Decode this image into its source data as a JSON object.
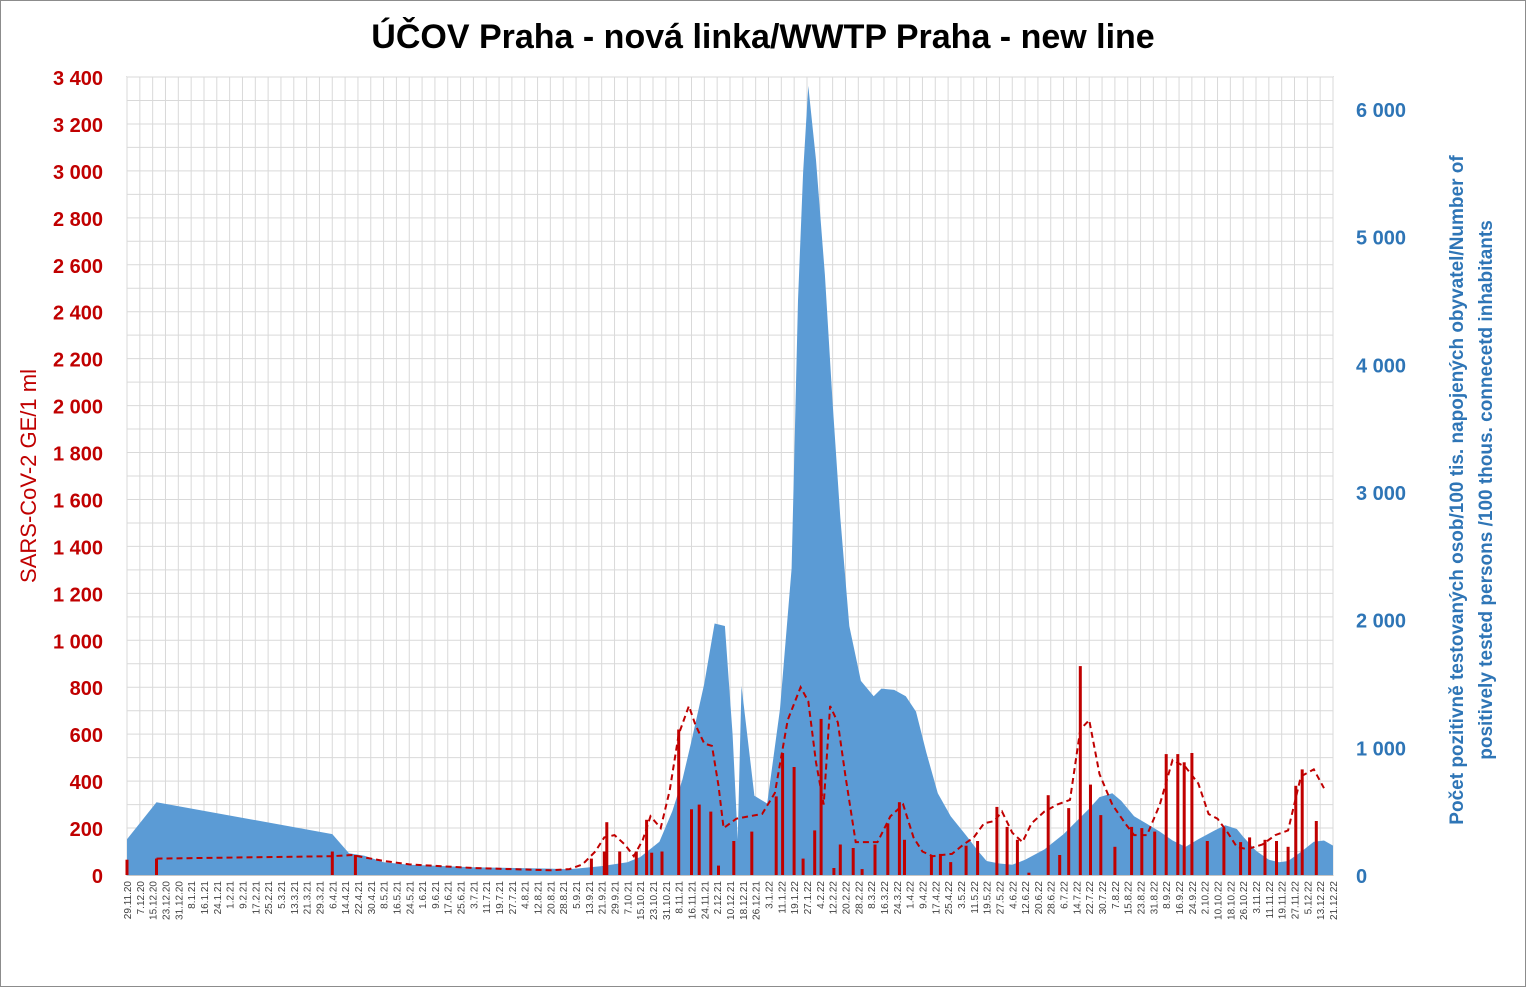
{
  "chart_data": {
    "type": "area",
    "title": "ÚČOV Praha - nová linka/WWTP Praha - new line",
    "ylabel_left": "SARS-CoV-2 GE/1 ml",
    "ylabel_right_lines": [
      "Počet pozitivně testovaných osob/100 tis. napojených obyvatel/Number of",
      "positively tested persons /100 thous. connecetd inhabitants"
    ],
    "y_left_range": [
      0,
      3400
    ],
    "y_left_ticks": [
      0,
      200,
      400,
      600,
      800,
      1000,
      1200,
      1400,
      1600,
      1800,
      2000,
      2200,
      2400,
      2600,
      2800,
      3000,
      3200,
      3400
    ],
    "y_left_tick_labels": [
      "0",
      "200",
      "400",
      "600",
      "800",
      "1 000",
      "1 200",
      "1 400",
      "1 600",
      "1 800",
      "2 000",
      "2 200",
      "2 400",
      "2 600",
      "2 800",
      "3 000",
      "3 200",
      "3 400"
    ],
    "y_right_range": [
      0,
      6250
    ],
    "y_right_ticks": [
      0,
      1000,
      2000,
      3000,
      4000,
      5000,
      6000
    ],
    "y_right_tick_labels": [
      "0",
      "1 000",
      "2 000",
      "3 000",
      "4 000",
      "5 000",
      "6 000"
    ],
    "x_labels": [
      "29.11.20",
      "7.12.20",
      "15.12.20",
      "23.12.20",
      "31.12.20",
      "8.1.21",
      "16.1.21",
      "24.1.21",
      "1.2.21",
      "9.2.21",
      "17.2.21",
      "25.2.21",
      "5.3.21",
      "13.3.21",
      "21.3.21",
      "29.3.21",
      "6.4.21",
      "14.4.21",
      "22.4.21",
      "30.4.21",
      "8.5.21",
      "16.5.21",
      "24.5.21",
      "1.6.21",
      "9.6.21",
      "17.6.21",
      "25.6.21",
      "3.7.21",
      "11.7.21",
      "19.7.21",
      "27.7.21",
      "4.8.21",
      "12.8.21",
      "20.8.21",
      "28.8.21",
      "5.9.21",
      "13.9.21",
      "21.9.21",
      "29.9.21",
      "7.10.21",
      "15.10.21",
      "23.10.21",
      "31.10.21",
      "8.11.21",
      "16.11.21",
      "24.11.21",
      "2.12.21",
      "10.12.21",
      "18.12.21",
      "26.12.21",
      "3.1.22",
      "11.1.22",
      "19.1.22",
      "27.1.22",
      "4.2.22",
      "12.2.22",
      "20.2.22",
      "28.2.22",
      "8.3.22",
      "16.3.22",
      "24.3.22",
      "1.4.22",
      "9.4.22",
      "17.4.22",
      "25.4.22",
      "3.5.22",
      "11.5.22",
      "19.5.22",
      "27.5.22",
      "4.6.22",
      "12.6.22",
      "20.6.22",
      "28.6.22",
      "6.7.22",
      "14.7.22",
      "22.7.22",
      "30.7.22",
      "7.8.22",
      "15.8.22",
      "23.8.22",
      "31.8.22",
      "8.9.22",
      "16.9.22",
      "24.9.22",
      "2.10.22",
      "10.10.22",
      "18.10.22",
      "26.10.22",
      "3.11.22",
      "11.11.22",
      "19.11.22",
      "27.11.22",
      "5.12.22",
      "13.12.22",
      "21.12.22"
    ],
    "x_range": [
      0,
      94
    ],
    "series": [
      {
        "kind": "area",
        "axis": "right",
        "color": "#5b9bd5",
        "points": [
          [
            0,
            280
          ],
          [
            2.3,
            570
          ],
          [
            16,
            320
          ],
          [
            17.3,
            170
          ],
          [
            18.5,
            150
          ],
          [
            20,
            100
          ],
          [
            22,
            80
          ],
          [
            27,
            60
          ],
          [
            33,
            50
          ],
          [
            34.3,
            45
          ],
          [
            35,
            50
          ],
          [
            37,
            70
          ],
          [
            39,
            100
          ],
          [
            40,
            140
          ],
          [
            41.5,
            260
          ],
          [
            42.5,
            500
          ],
          [
            43.3,
            750
          ],
          [
            44,
            1050
          ],
          [
            45,
            1500
          ],
          [
            45.8,
            1970
          ],
          [
            46.6,
            1950
          ],
          [
            47.2,
            1100
          ],
          [
            47.6,
            280
          ],
          [
            47.9,
            1480
          ],
          [
            48.9,
            620
          ],
          [
            49.9,
            560
          ],
          [
            50.9,
            1300
          ],
          [
            51.8,
            2400
          ],
          [
            52.3,
            4500
          ],
          [
            52.7,
            5500
          ],
          [
            53.1,
            6180
          ],
          [
            53.7,
            5600
          ],
          [
            54.4,
            4700
          ],
          [
            55,
            3700
          ],
          [
            55.6,
            2800
          ],
          [
            56.3,
            1950
          ],
          [
            57.2,
            1520
          ],
          [
            58.2,
            1400
          ],
          [
            58.8,
            1460
          ],
          [
            59.8,
            1450
          ],
          [
            60.7,
            1400
          ],
          [
            61.5,
            1280
          ],
          [
            62.3,
            960
          ],
          [
            63.2,
            640
          ],
          [
            64.2,
            460
          ],
          [
            65.4,
            310
          ],
          [
            66.4,
            180
          ],
          [
            67,
            110
          ],
          [
            68,
            90
          ],
          [
            69,
            80
          ],
          [
            70,
            120
          ],
          [
            71.5,
            200
          ],
          [
            73,
            320
          ],
          [
            74,
            420
          ],
          [
            75,
            520
          ],
          [
            75.8,
            610
          ],
          [
            76.8,
            640
          ],
          [
            77.5,
            580
          ],
          [
            78.5,
            460
          ],
          [
            79.5,
            400
          ],
          [
            80.5,
            340
          ],
          [
            81.5,
            270
          ],
          [
            82.5,
            220
          ],
          [
            83.5,
            280
          ],
          [
            84.8,
            350
          ],
          [
            85.6,
            390
          ],
          [
            86.5,
            360
          ],
          [
            87,
            300
          ],
          [
            88,
            190
          ],
          [
            89,
            120
          ],
          [
            89.8,
            100
          ],
          [
            90.5,
            110
          ],
          [
            91.5,
            180
          ],
          [
            92.5,
            260
          ],
          [
            93.3,
            270
          ],
          [
            94,
            230
          ]
        ]
      },
      {
        "kind": "bar",
        "axis": "left",
        "color": "#c00000",
        "points": [
          [
            0,
            65
          ],
          [
            2.3,
            70
          ],
          [
            16,
            100
          ],
          [
            17.8,
            85
          ],
          [
            36.2,
            70
          ],
          [
            37.2,
            100
          ],
          [
            37.4,
            225
          ],
          [
            38.4,
            100
          ],
          [
            39.7,
            100
          ],
          [
            40.5,
            235
          ],
          [
            40.9,
            95
          ],
          [
            41.7,
            100
          ],
          [
            43,
            620
          ],
          [
            44,
            280
          ],
          [
            44.6,
            300
          ],
          [
            45.5,
            270
          ],
          [
            46.1,
            40
          ],
          [
            47.3,
            145
          ],
          [
            48.7,
            185
          ],
          [
            50.6,
            335
          ],
          [
            51.1,
            520
          ],
          [
            52,
            460
          ],
          [
            52.7,
            70
          ],
          [
            53.6,
            190
          ],
          [
            54.1,
            665
          ],
          [
            55.1,
            30
          ],
          [
            55.6,
            130
          ],
          [
            56.6,
            115
          ],
          [
            57.3,
            25
          ],
          [
            58.3,
            130
          ],
          [
            59.3,
            220
          ],
          [
            60.2,
            310
          ],
          [
            60.6,
            150
          ],
          [
            62.7,
            85
          ],
          [
            63.4,
            90
          ],
          [
            64.2,
            55
          ],
          [
            65.4,
            125
          ],
          [
            66.3,
            145
          ],
          [
            67.8,
            290
          ],
          [
            68.6,
            205
          ],
          [
            69.4,
            150
          ],
          [
            70.3,
            10
          ],
          [
            71.8,
            340
          ],
          [
            72.7,
            85
          ],
          [
            73.4,
            285
          ],
          [
            74.3,
            890
          ],
          [
            75.1,
            385
          ],
          [
            75.9,
            255
          ],
          [
            77,
            120
          ],
          [
            78.3,
            205
          ],
          [
            79.1,
            200
          ],
          [
            80.1,
            185
          ],
          [
            81,
            515
          ],
          [
            81.9,
            515
          ],
          [
            82.4,
            480
          ],
          [
            83,
            520
          ],
          [
            84.2,
            145
          ],
          [
            85.5,
            200
          ],
          [
            86.8,
            140
          ],
          [
            87.5,
            160
          ],
          [
            88.7,
            150
          ],
          [
            89.6,
            145
          ],
          [
            90.5,
            120
          ],
          [
            91.1,
            380
          ],
          [
            91.6,
            450
          ],
          [
            92.7,
            230
          ]
        ]
      },
      {
        "kind": "line",
        "axis": "left",
        "style": "dashed",
        "color": "#c00000",
        "points": [
          [
            2.3,
            70
          ],
          [
            16,
            80
          ],
          [
            17.5,
            85
          ],
          [
            18.5,
            75
          ],
          [
            20,
            60
          ],
          [
            22,
            45
          ],
          [
            27,
            30
          ],
          [
            33,
            20
          ],
          [
            34.5,
            25
          ],
          [
            35.5,
            45
          ],
          [
            36.5,
            100
          ],
          [
            37.2,
            160
          ],
          [
            38,
            170
          ],
          [
            38.8,
            130
          ],
          [
            39.5,
            80
          ],
          [
            40.2,
            150
          ],
          [
            40.8,
            250
          ],
          [
            41.6,
            200
          ],
          [
            42.3,
            360
          ],
          [
            43,
            600
          ],
          [
            43.8,
            720
          ],
          [
            44.3,
            640
          ],
          [
            45,
            560
          ],
          [
            45.6,
            550
          ],
          [
            46.1,
            380
          ],
          [
            46.5,
            200
          ],
          [
            47.5,
            240
          ],
          [
            48.5,
            250
          ],
          [
            49.5,
            260
          ],
          [
            50.5,
            350
          ],
          [
            51.5,
            660
          ],
          [
            52.5,
            800
          ],
          [
            53.1,
            740
          ],
          [
            53.7,
            480
          ],
          [
            54.3,
            300
          ],
          [
            54.8,
            720
          ],
          [
            55.4,
            650
          ],
          [
            56,
            420
          ],
          [
            56.8,
            140
          ],
          [
            57.5,
            140
          ],
          [
            58.5,
            140
          ],
          [
            59.5,
            250
          ],
          [
            60.5,
            300
          ],
          [
            61.3,
            160
          ],
          [
            62,
            100
          ],
          [
            62.8,
            80
          ],
          [
            63.5,
            85
          ],
          [
            64.3,
            90
          ],
          [
            65.2,
            130
          ],
          [
            66,
            160
          ],
          [
            66.8,
            220
          ],
          [
            67.6,
            230
          ],
          [
            68.2,
            270
          ],
          [
            69,
            180
          ],
          [
            69.8,
            140
          ],
          [
            70.5,
            220
          ],
          [
            71.5,
            270
          ],
          [
            72.5,
            300
          ],
          [
            73.5,
            320
          ],
          [
            74.3,
            620
          ],
          [
            75,
            660
          ],
          [
            75.8,
            430
          ],
          [
            76.8,
            300
          ],
          [
            77.8,
            220
          ],
          [
            78.5,
            170
          ],
          [
            79.5,
            170
          ],
          [
            80.5,
            300
          ],
          [
            81.5,
            490
          ],
          [
            82.5,
            460
          ],
          [
            83.5,
            390
          ],
          [
            84.3,
            260
          ],
          [
            85,
            240
          ],
          [
            85.8,
            180
          ],
          [
            86.5,
            120
          ],
          [
            87.3,
            110
          ],
          [
            88.5,
            130
          ],
          [
            89.5,
            170
          ],
          [
            90.5,
            190
          ],
          [
            91.5,
            420
          ],
          [
            92.5,
            450
          ],
          [
            93.3,
            370
          ]
        ]
      }
    ],
    "grid": true
  }
}
